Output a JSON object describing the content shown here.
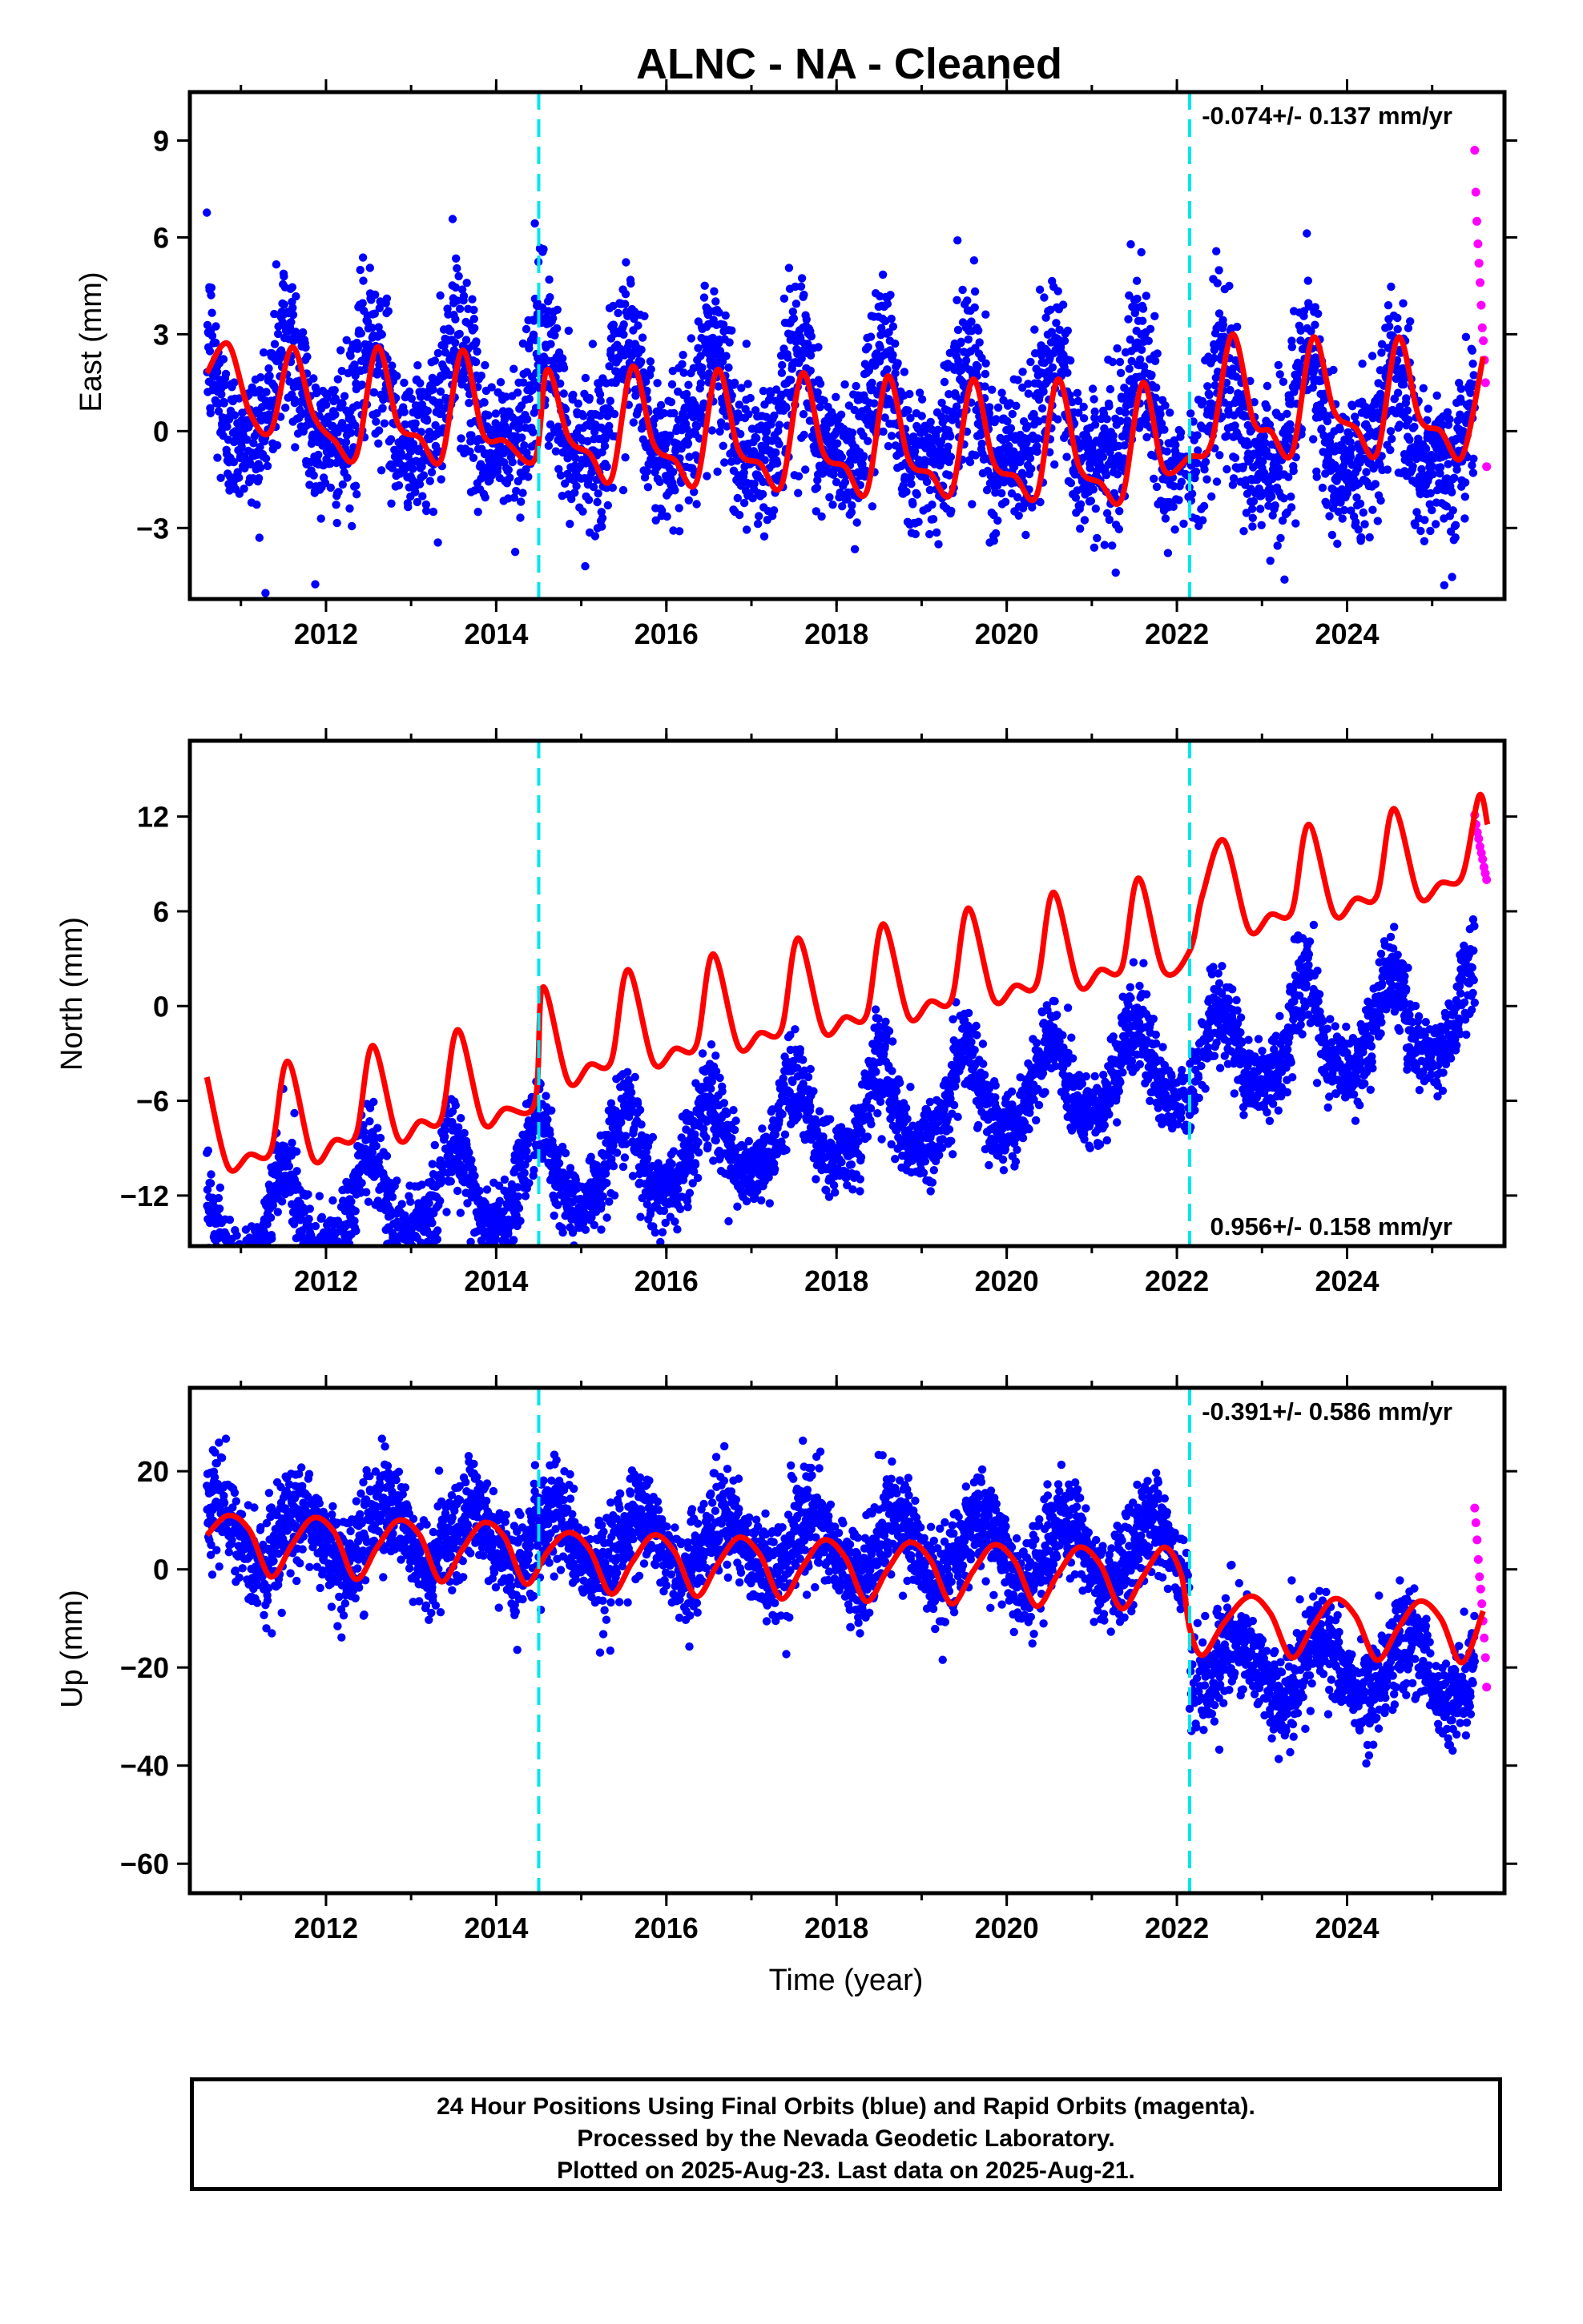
{
  "chart_data": [
    {
      "type": "scatter",
      "title": "ALNC  - NA - Cleaned",
      "ylabel": "East (mm)",
      "xlabel": "",
      "xlim": [
        2010.4,
        2025.85
      ],
      "ylim": [
        -5.2,
        10.5
      ],
      "xticks": [
        2012,
        2014,
        2016,
        2018,
        2020,
        2022,
        2024
      ],
      "yticks": [
        -3,
        0,
        3,
        6,
        9
      ],
      "rate_label": "-0.074+/- 0.137 mm/yr",
      "rate_position": "top-right",
      "offsets": [
        2014.5,
        2022.15
      ],
      "grid": false,
      "series": [
        {
          "kind": "final_orbits",
          "color": "#0000ff",
          "x_range": [
            2010.6,
            2025.5
          ],
          "trend_mm_per_yr": -0.074,
          "offset_mm": 0.4,
          "annual_amp_mm": 1.6,
          "annual_phase_yr": 0.55,
          "semi_annual_amp_mm": 0.5,
          "scatter_sd_mm": 1.1
        },
        {
          "kind": "rapid_orbits",
          "color": "#ff00ff",
          "x_range": [
            2025.5,
            2025.64
          ],
          "values": [
            8.7,
            7.4,
            6.5,
            5.8,
            5.2,
            4.6,
            3.9,
            3.2,
            2.8,
            2.2,
            1.5,
            -1.1
          ]
        },
        {
          "kind": "model_fit",
          "color": "#ff0000",
          "points": [
            [
              2010.6,
              1.8
            ],
            [
              2010.85,
              2.7
            ],
            [
              2011.1,
              0.6
            ],
            [
              2011.35,
              0.0
            ],
            [
              2011.6,
              2.6
            ],
            [
              2011.85,
              0.5
            ],
            [
              2012.1,
              -0.3
            ],
            [
              2012.35,
              -0.8
            ],
            [
              2012.6,
              2.6
            ],
            [
              2012.85,
              0.2
            ],
            [
              2013.1,
              -0.2
            ],
            [
              2013.35,
              -0.9
            ],
            [
              2013.6,
              2.5
            ],
            [
              2013.85,
              -0.1
            ],
            [
              2014.1,
              -0.3
            ],
            [
              2014.45,
              -0.9
            ],
            [
              2014.6,
              1.9
            ],
            [
              2014.85,
              -0.2
            ],
            [
              2015.1,
              -0.7
            ],
            [
              2015.35,
              -1.5
            ],
            [
              2015.6,
              2.0
            ],
            [
              2015.85,
              -0.4
            ],
            [
              2016.1,
              -0.9
            ],
            [
              2016.35,
              -1.6
            ],
            [
              2016.6,
              1.9
            ],
            [
              2016.85,
              -0.6
            ],
            [
              2017.1,
              -1.0
            ],
            [
              2017.35,
              -1.7
            ],
            [
              2017.6,
              1.8
            ],
            [
              2017.85,
              -0.7
            ],
            [
              2018.1,
              -1.1
            ],
            [
              2018.35,
              -1.9
            ],
            [
              2018.6,
              1.7
            ],
            [
              2018.85,
              -0.9
            ],
            [
              2019.1,
              -1.3
            ],
            [
              2019.35,
              -1.9
            ],
            [
              2019.6,
              1.6
            ],
            [
              2019.85,
              -1.0
            ],
            [
              2020.1,
              -1.4
            ],
            [
              2020.35,
              -2.0
            ],
            [
              2020.6,
              1.6
            ],
            [
              2020.85,
              -1.1
            ],
            [
              2021.1,
              -1.6
            ],
            [
              2021.35,
              -2.1
            ],
            [
              2021.6,
              1.5
            ],
            [
              2021.85,
              -1.2
            ],
            [
              2022.15,
              -0.8
            ],
            [
              2022.4,
              -0.4
            ],
            [
              2022.65,
              3.0
            ],
            [
              2022.9,
              0.3
            ],
            [
              2023.1,
              0.0
            ],
            [
              2023.35,
              -0.7
            ],
            [
              2023.6,
              2.9
            ],
            [
              2023.85,
              0.6
            ],
            [
              2024.1,
              0.1
            ],
            [
              2024.35,
              -0.7
            ],
            [
              2024.6,
              2.9
            ],
            [
              2024.85,
              0.4
            ],
            [
              2025.1,
              0.0
            ],
            [
              2025.35,
              -0.8
            ],
            [
              2025.6,
              2.3
            ]
          ]
        }
      ]
    },
    {
      "type": "scatter",
      "title": "",
      "ylabel": "North (mm)",
      "xlabel": "",
      "xlim": [
        2010.4,
        2025.85
      ],
      "ylim": [
        -15.2,
        16.8
      ],
      "xticks": [
        2012,
        2014,
        2016,
        2018,
        2020,
        2022,
        2024
      ],
      "yticks": [
        -12,
        -6,
        0,
        6,
        12
      ],
      "rate_label": "0.956+/- 0.158 mm/yr",
      "rate_position": "bottom-right",
      "offsets": [
        2014.5,
        2022.15
      ],
      "grid": false,
      "series": [
        {
          "kind": "final_orbits",
          "color": "#0000ff",
          "x_range": [
            2010.6,
            2025.5
          ],
          "trend_mm_per_yr": 0.956,
          "offset_mm": -7.5,
          "annual_amp_mm": 2.8,
          "annual_phase_yr": 0.5,
          "semi_annual_amp_mm": 0.6,
          "scatter_sd_mm": 1.2
        },
        {
          "kind": "rapid_orbits",
          "color": "#ff00ff",
          "x_range": [
            2025.5,
            2025.64
          ],
          "values": [
            12.1,
            11.5,
            11.0,
            10.6,
            10.1,
            9.7,
            9.3,
            8.8,
            8.4,
            8.0
          ]
        },
        {
          "kind": "model_fit",
          "color": "#ff0000",
          "points": [
            [
              2010.6,
              -4.5
            ],
            [
              2010.85,
              -10.2
            ],
            [
              2011.1,
              -9.4
            ],
            [
              2011.35,
              -9.2
            ],
            [
              2011.55,
              -3.5
            ],
            [
              2011.85,
              -9.7
            ],
            [
              2012.1,
              -8.5
            ],
            [
              2012.35,
              -8.2
            ],
            [
              2012.55,
              -2.5
            ],
            [
              2012.85,
              -8.4
            ],
            [
              2013.1,
              -7.3
            ],
            [
              2013.35,
              -7.2
            ],
            [
              2013.55,
              -1.5
            ],
            [
              2013.85,
              -7.4
            ],
            [
              2014.1,
              -6.5
            ],
            [
              2014.45,
              -6.2
            ],
            [
              2014.55,
              1.2
            ],
            [
              2014.85,
              -4.8
            ],
            [
              2015.1,
              -3.7
            ],
            [
              2015.35,
              -3.5
            ],
            [
              2015.55,
              2.3
            ],
            [
              2015.85,
              -3.6
            ],
            [
              2016.1,
              -2.7
            ],
            [
              2016.35,
              -2.5
            ],
            [
              2016.55,
              3.3
            ],
            [
              2016.85,
              -2.6
            ],
            [
              2017.1,
              -1.7
            ],
            [
              2017.35,
              -1.5
            ],
            [
              2017.55,
              4.3
            ],
            [
              2017.85,
              -1.6
            ],
            [
              2018.1,
              -0.7
            ],
            [
              2018.35,
              -0.6
            ],
            [
              2018.55,
              5.2
            ],
            [
              2018.85,
              -0.7
            ],
            [
              2019.1,
              0.3
            ],
            [
              2019.35,
              0.4
            ],
            [
              2019.55,
              6.2
            ],
            [
              2019.85,
              0.4
            ],
            [
              2020.1,
              1.3
            ],
            [
              2020.35,
              1.4
            ],
            [
              2020.55,
              7.2
            ],
            [
              2020.85,
              1.3
            ],
            [
              2021.1,
              2.3
            ],
            [
              2021.35,
              2.4
            ],
            [
              2021.55,
              8.1
            ],
            [
              2021.85,
              2.2
            ],
            [
              2022.15,
              3.5
            ],
            [
              2022.3,
              7.0
            ],
            [
              2022.55,
              10.5
            ],
            [
              2022.85,
              4.8
            ],
            [
              2023.1,
              5.8
            ],
            [
              2023.35,
              6.0
            ],
            [
              2023.55,
              11.5
            ],
            [
              2023.85,
              5.8
            ],
            [
              2024.1,
              6.8
            ],
            [
              2024.35,
              7.0
            ],
            [
              2024.55,
              12.5
            ],
            [
              2024.85,
              6.9
            ],
            [
              2025.1,
              7.8
            ],
            [
              2025.35,
              8.2
            ],
            [
              2025.55,
              13.3
            ],
            [
              2025.65,
              11.5
            ]
          ]
        }
      ]
    },
    {
      "type": "scatter",
      "title": "",
      "ylabel": "Up (mm)",
      "xlabel": "Time (year)",
      "xlim": [
        2010.4,
        2025.85
      ],
      "ylim": [
        -66,
        37
      ],
      "xticks": [
        2012,
        2014,
        2016,
        2018,
        2020,
        2022,
        2024
      ],
      "yticks": [
        -60,
        -40,
        -20,
        0,
        20
      ],
      "rate_label": "-0.391+/- 0.586 mm/yr",
      "rate_position": "top-right",
      "offsets": [
        2014.5,
        2022.15
      ],
      "grid": false,
      "series": [
        {
          "kind": "final_orbits",
          "color": "#0000ff",
          "x_range": [
            2010.6,
            2025.5
          ],
          "trend_mm_per_yr": -0.391,
          "offset_mm": 4.5,
          "annual_amp_mm": 6.5,
          "annual_phase_yr": 0.7,
          "semi_annual_amp_mm": 0.0,
          "scatter_sd_mm": 4.5,
          "step_at": 2022.15,
          "step_mm": -22
        },
        {
          "kind": "rapid_orbits",
          "color": "#ff00ff",
          "x_range": [
            2025.5,
            2025.64
          ],
          "values": [
            12.5,
            9.5,
            6.0,
            2.0,
            -1.5,
            -4.0,
            -7.0,
            -10.5,
            -14.0,
            -18.0,
            -24.0
          ]
        },
        {
          "kind": "model_fit",
          "color": "#ff0000",
          "points": [
            [
              2010.6,
              7.0
            ],
            [
              2010.85,
              11.0
            ],
            [
              2011.1,
              8.0
            ],
            [
              2011.35,
              -1.5
            ],
            [
              2011.6,
              5.0
            ],
            [
              2011.85,
              10.5
            ],
            [
              2012.1,
              7.5
            ],
            [
              2012.35,
              -2.0
            ],
            [
              2012.6,
              4.5
            ],
            [
              2012.85,
              10.0
            ],
            [
              2013.1,
              7.0
            ],
            [
              2013.35,
              -2.5
            ],
            [
              2013.6,
              4.0
            ],
            [
              2013.85,
              9.5
            ],
            [
              2014.1,
              6.5
            ],
            [
              2014.35,
              -3.0
            ],
            [
              2014.6,
              3.5
            ],
            [
              2014.85,
              7.5
            ],
            [
              2015.1,
              4.0
            ],
            [
              2015.35,
              -5.0
            ],
            [
              2015.6,
              1.5
            ],
            [
              2015.85,
              7.0
            ],
            [
              2016.1,
              3.5
            ],
            [
              2016.35,
              -5.5
            ],
            [
              2016.6,
              1.0
            ],
            [
              2016.85,
              6.5
            ],
            [
              2017.1,
              3.0
            ],
            [
              2017.35,
              -6.0
            ],
            [
              2017.6,
              0.5
            ],
            [
              2017.85,
              6.0
            ],
            [
              2018.1,
              2.5
            ],
            [
              2018.35,
              -6.5
            ],
            [
              2018.6,
              0.0
            ],
            [
              2018.85,
              5.5
            ],
            [
              2019.1,
              2.0
            ],
            [
              2019.35,
              -7.0
            ],
            [
              2019.6,
              -0.5
            ],
            [
              2019.85,
              5.0
            ],
            [
              2020.1,
              1.5
            ],
            [
              2020.35,
              -7.5
            ],
            [
              2020.6,
              -1.0
            ],
            [
              2020.85,
              4.5
            ],
            [
              2021.1,
              1.0
            ],
            [
              2021.35,
              -8.0
            ],
            [
              2021.6,
              -1.5
            ],
            [
              2021.85,
              4.5
            ],
            [
              2022.05,
              -1.0
            ],
            [
              2022.15,
              -12.0
            ],
            [
              2022.3,
              -17.5
            ],
            [
              2022.55,
              -11.0
            ],
            [
              2022.85,
              -5.5
            ],
            [
              2023.1,
              -9.0
            ],
            [
              2023.35,
              -18.0
            ],
            [
              2023.6,
              -11.5
            ],
            [
              2023.85,
              -6.0
            ],
            [
              2024.1,
              -9.5
            ],
            [
              2024.35,
              -18.5
            ],
            [
              2024.6,
              -12.0
            ],
            [
              2024.85,
              -6.5
            ],
            [
              2025.1,
              -10.0
            ],
            [
              2025.35,
              -19.0
            ],
            [
              2025.6,
              -8.5
            ]
          ]
        }
      ]
    }
  ],
  "footer": {
    "line1": "24 Hour Positions Using Final Orbits (blue) and Rapid Orbits (magenta).",
    "line2": "Processed by the Nevada Geodetic Laboratory.",
    "line3": "Plotted on 2025-Aug-23. Last data on 2025-Aug-21."
  },
  "colors": {
    "final_orbits": "#0000ff",
    "rapid_orbits": "#ff00ff",
    "model_fit": "#ff0000",
    "offset_line": "#00e5ee",
    "frame": "#000000"
  }
}
